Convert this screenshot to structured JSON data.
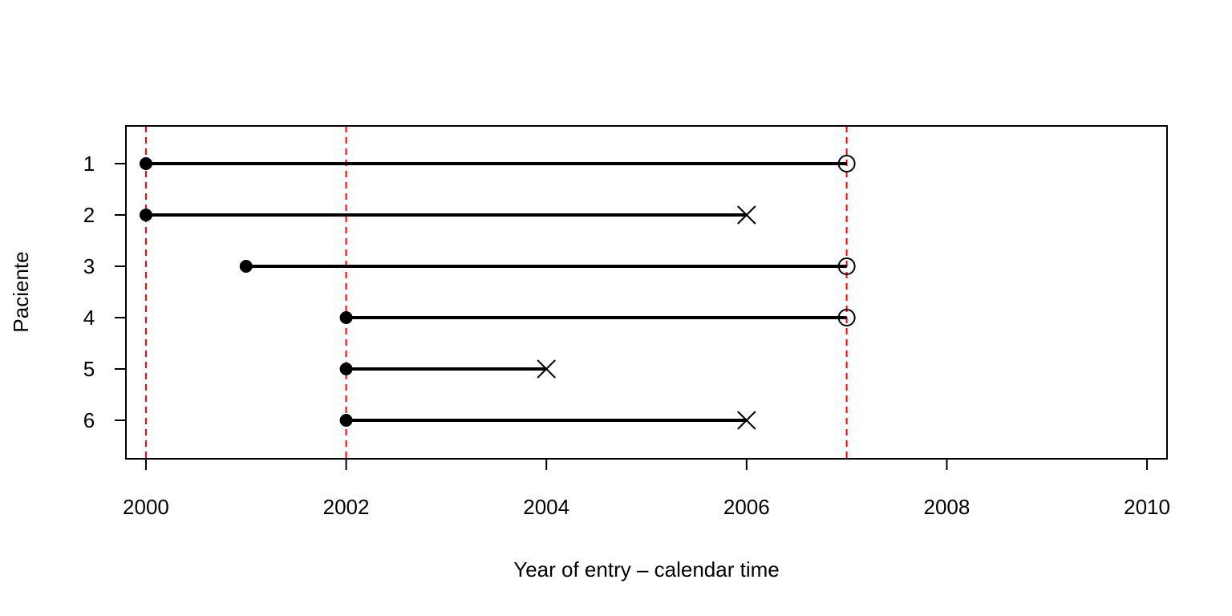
{
  "chart_data": {
    "type": "timeline",
    "title": "",
    "xlabel": "Year of entry – calendar time",
    "ylabel": "Paciente",
    "xlim": [
      1999.8,
      2010.2
    ],
    "xticks": [
      2000,
      2002,
      2004,
      2006,
      2008,
      2010
    ],
    "xtick_labels": [
      "2000",
      "2002",
      "2004",
      "2006",
      "2008",
      "2010"
    ],
    "yticks": [
      1,
      2,
      3,
      4,
      5,
      6
    ],
    "ytick_labels": [
      "1",
      "2",
      "3",
      "4",
      "5",
      "6"
    ],
    "grid": false,
    "reference_lines": {
      "x": [
        2000,
        2002,
        2007
      ],
      "color": "#ff0000",
      "style": "dashed"
    },
    "patients": [
      {
        "id": 1,
        "entry": 2000,
        "exit": 2007,
        "event": "censored"
      },
      {
        "id": 2,
        "entry": 2000,
        "exit": 2006,
        "event": "event"
      },
      {
        "id": 3,
        "entry": 2001,
        "exit": 2007,
        "event": "censored"
      },
      {
        "id": 4,
        "entry": 2002,
        "exit": 2007,
        "event": "censored"
      },
      {
        "id": 5,
        "entry": 2002,
        "exit": 2004,
        "event": "event"
      },
      {
        "id": 6,
        "entry": 2002,
        "exit": 2006,
        "event": "event"
      }
    ],
    "colors": {
      "line": "#000000",
      "reference": "#ff0000"
    }
  }
}
